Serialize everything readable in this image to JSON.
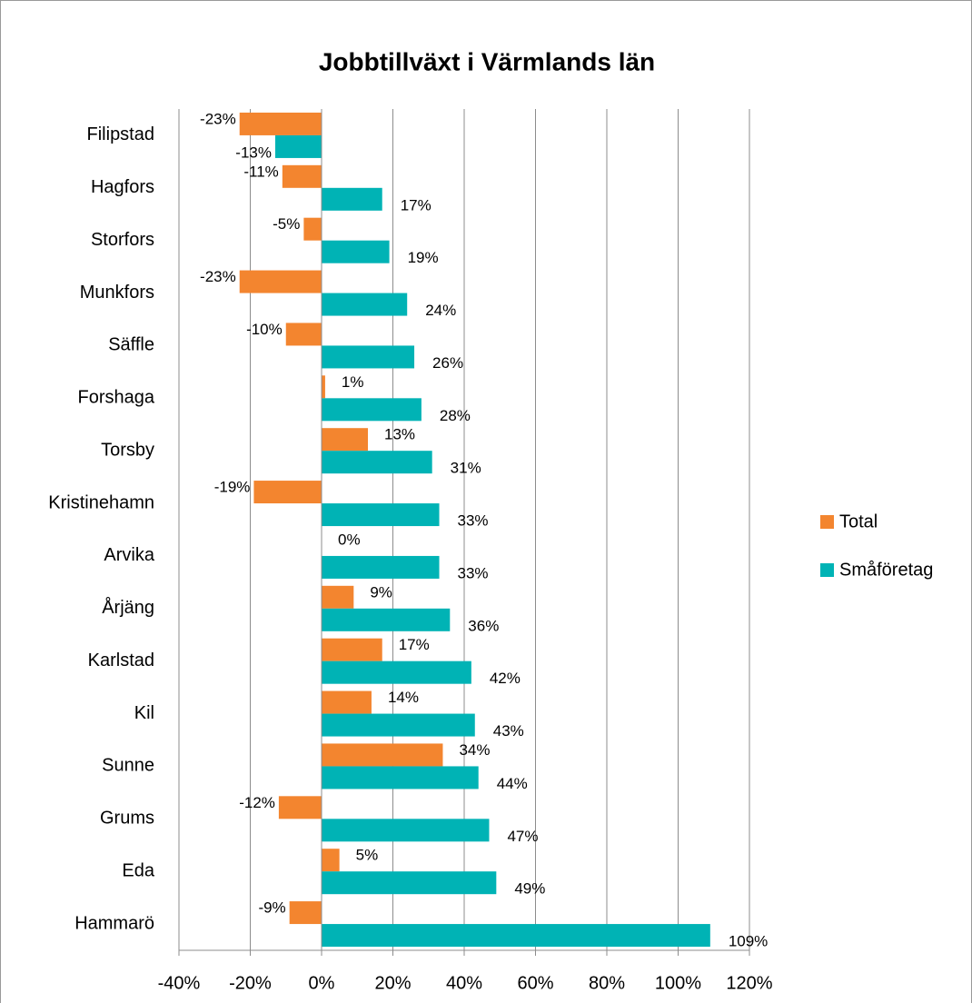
{
  "chart_data": {
    "type": "bar",
    "orientation": "horizontal",
    "title": "Jobbtillväxt i Värmlands län",
    "categories": [
      "Filipstad",
      "Hagfors",
      "Storfors",
      "Munkfors",
      "Säffle",
      "Forshaga",
      "Torsby",
      "Kristinehamn",
      "Arvika",
      "Årjäng",
      "Karlstad",
      "Kil",
      "Sunne",
      "Grums",
      "Eda",
      "Hammarö"
    ],
    "series": [
      {
        "name": "Total",
        "color": "#f3852f",
        "values": [
          -23,
          -11,
          -5,
          -23,
          -10,
          1,
          13,
          -19,
          0,
          9,
          17,
          14,
          34,
          -12,
          5,
          -9
        ],
        "value_labels": [
          "-23%",
          "-11%",
          "-5%",
          "-23%",
          "-10%",
          "1%",
          "13%",
          "-19%",
          "0%",
          "9%",
          "17%",
          "14%",
          "34%",
          "-12%",
          "5%",
          "-9%"
        ]
      },
      {
        "name": "Småföretag",
        "color": "#00b3b5",
        "values": [
          -13,
          17,
          19,
          24,
          26,
          28,
          31,
          33,
          33,
          36,
          42,
          43,
          44,
          47,
          49,
          109
        ],
        "value_labels": [
          "-13%",
          "17%",
          "19%",
          "24%",
          "26%",
          "28%",
          "31%",
          "33%",
          "33%",
          "36%",
          "42%",
          "43%",
          "44%",
          "47%",
          "49%",
          "109%"
        ]
      }
    ],
    "xlim": [
      -40,
      120
    ],
    "xticks": [
      {
        "value": -40,
        "label": "-40%"
      },
      {
        "value": -20,
        "label": "-20%"
      },
      {
        "value": 0,
        "label": "0%"
      },
      {
        "value": 20,
        "label": "20%"
      },
      {
        "value": 40,
        "label": "40%"
      },
      {
        "value": 60,
        "label": "60%"
      },
      {
        "value": 80,
        "label": "80%"
      },
      {
        "value": 100,
        "label": "100%"
      },
      {
        "value": 120,
        "label": "120%"
      }
    ],
    "grid": true,
    "legend": "right"
  }
}
